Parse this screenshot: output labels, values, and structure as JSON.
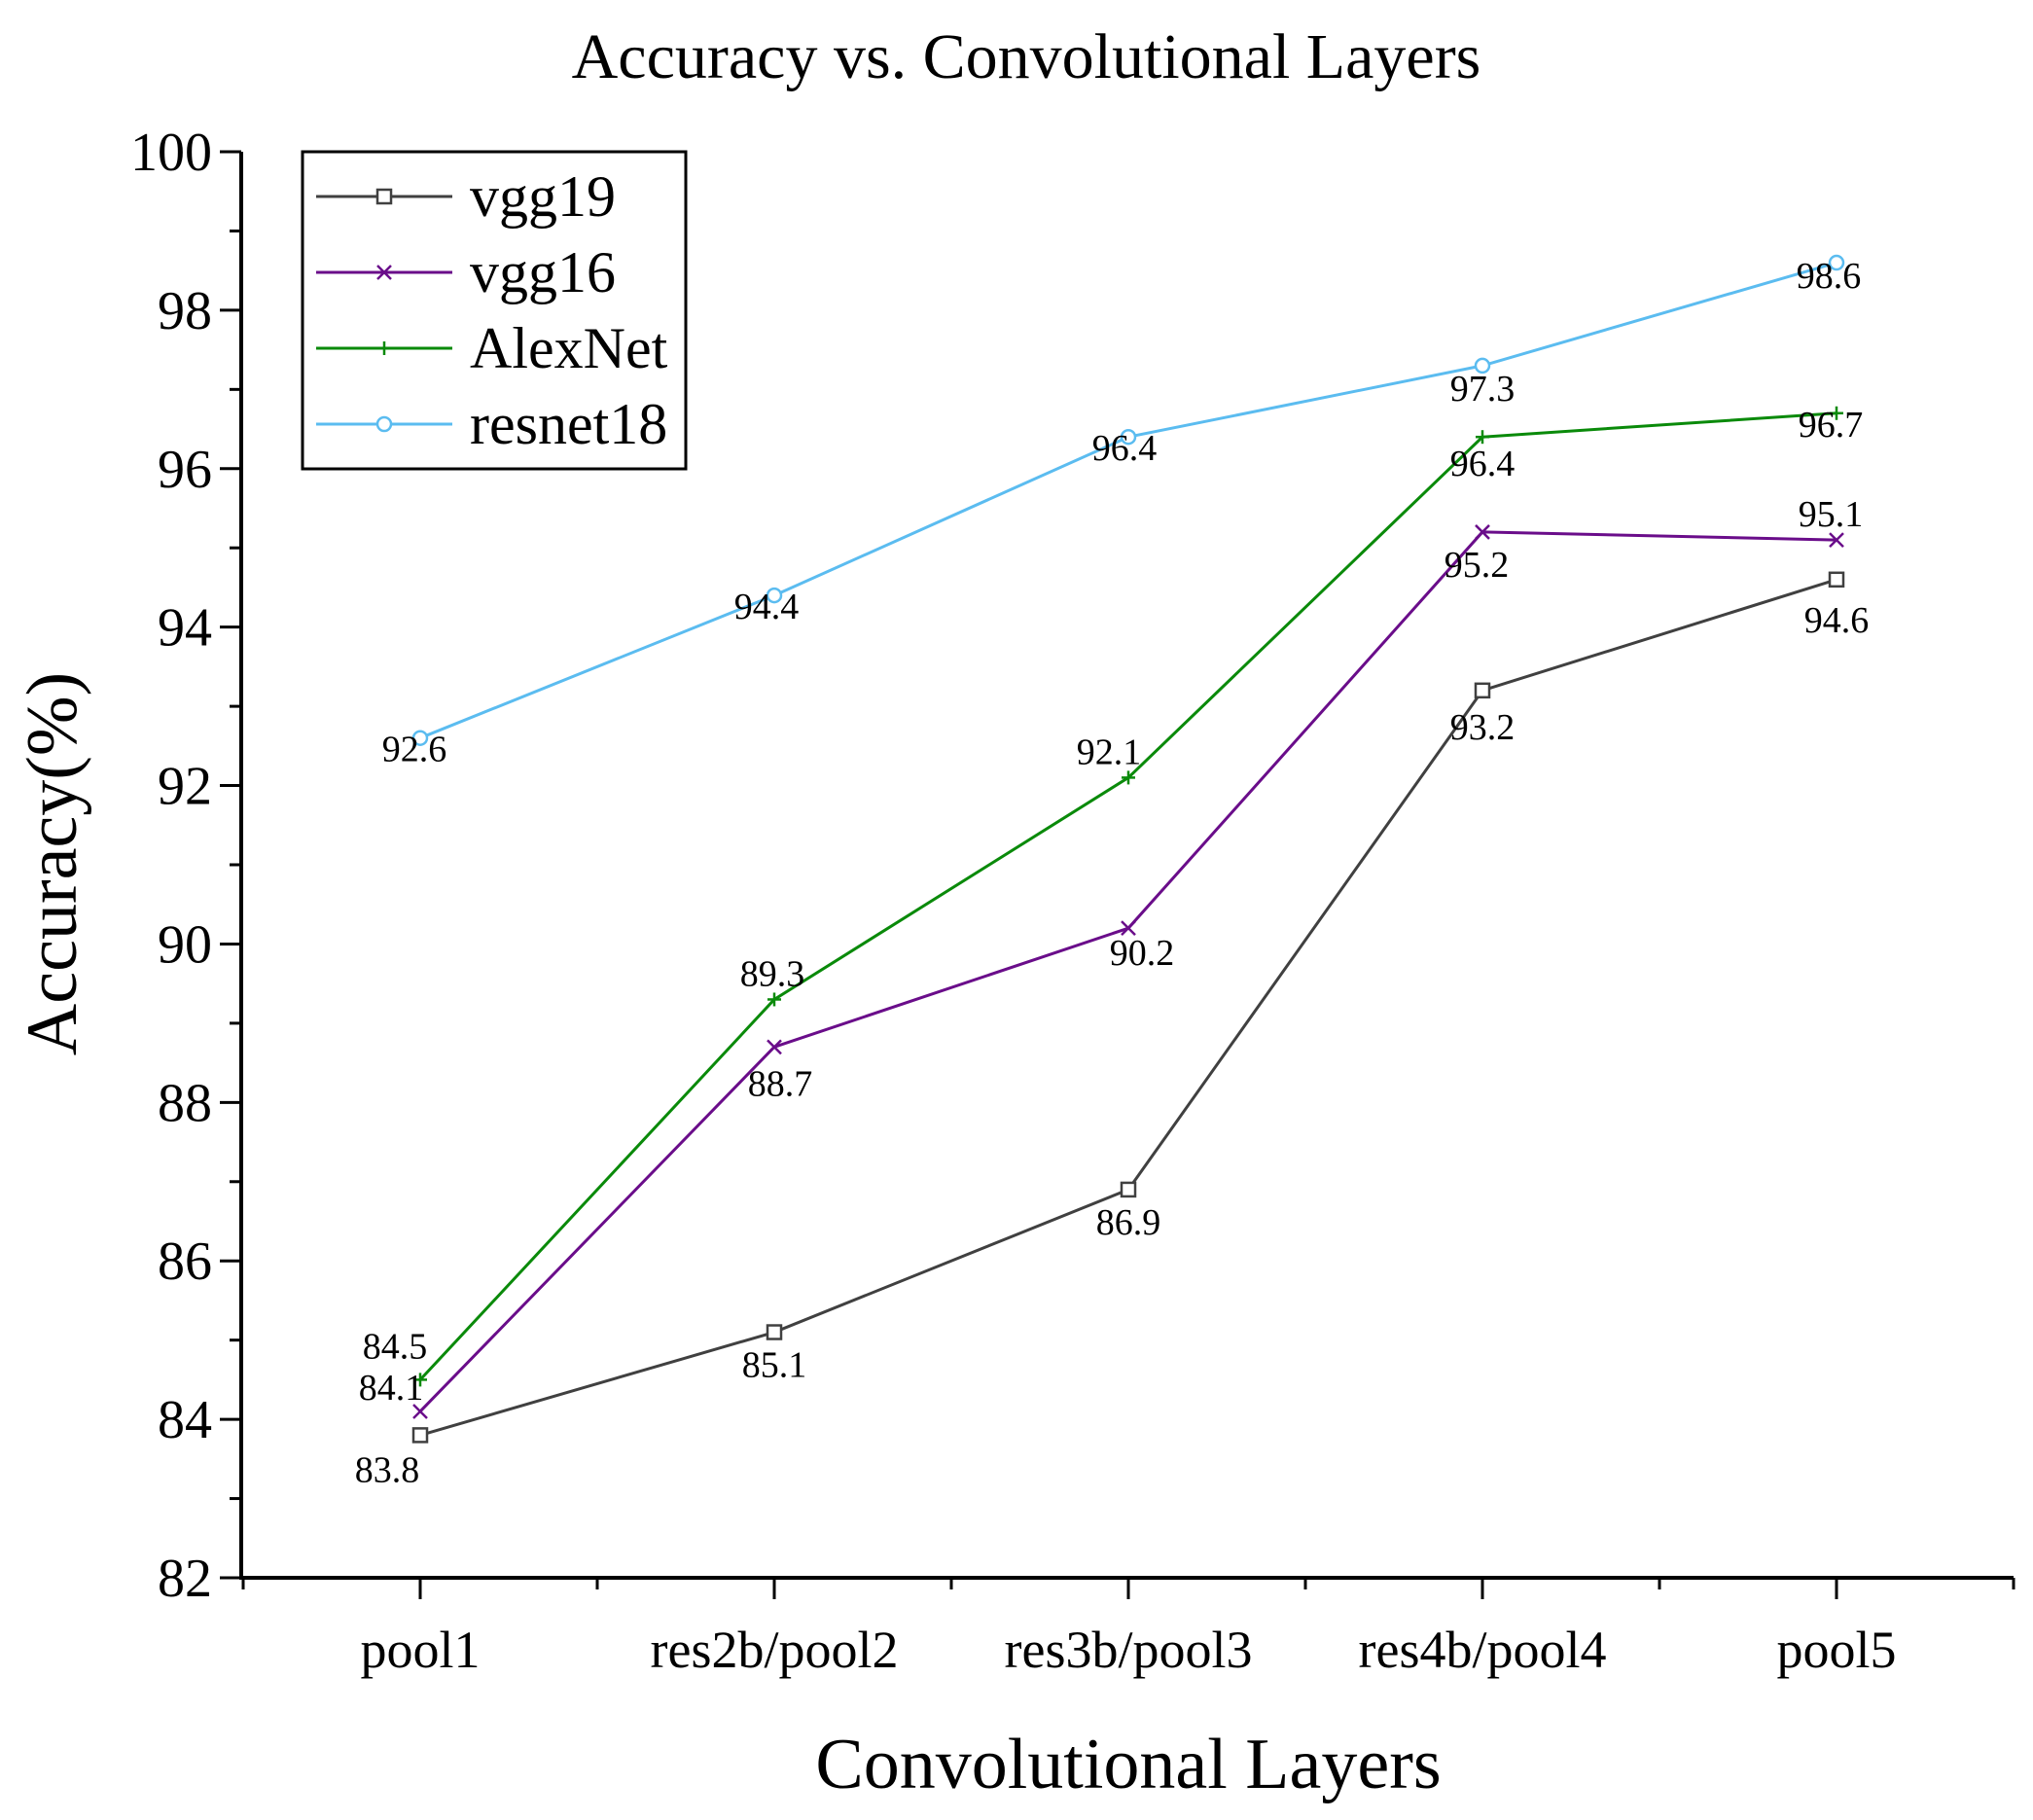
{
  "chart_data": {
    "type": "line",
    "title": "Accuracy vs. Convolutional Layers",
    "xlabel": "Convolutional Layers",
    "ylabel": "Accuracy(%)",
    "categories": [
      "pool1",
      "res2b/pool2",
      "res3b/pool3",
      "res4b/pool4",
      "pool5"
    ],
    "ylim": [
      82,
      100
    ],
    "yticks": [
      82,
      84,
      86,
      88,
      90,
      92,
      94,
      96,
      98,
      100
    ],
    "grid": false,
    "legend_position": "top-left",
    "series": [
      {
        "name": "vgg19",
        "color": "#404040",
        "marker": "square",
        "values": [
          83.8,
          85.1,
          86.9,
          93.2,
          94.6
        ]
      },
      {
        "name": "vgg16",
        "color": "#6a0d8a",
        "marker": "x",
        "values": [
          84.1,
          88.7,
          90.2,
          95.2,
          95.1
        ]
      },
      {
        "name": "AlexNet",
        "color": "#0a8a0a",
        "marker": "plus",
        "values": [
          84.5,
          89.3,
          92.1,
          96.4,
          96.7
        ]
      },
      {
        "name": "resnet18",
        "color": "#5bbcf0",
        "marker": "circle",
        "values": [
          92.6,
          94.4,
          96.4,
          97.3,
          98.6
        ]
      }
    ]
  }
}
